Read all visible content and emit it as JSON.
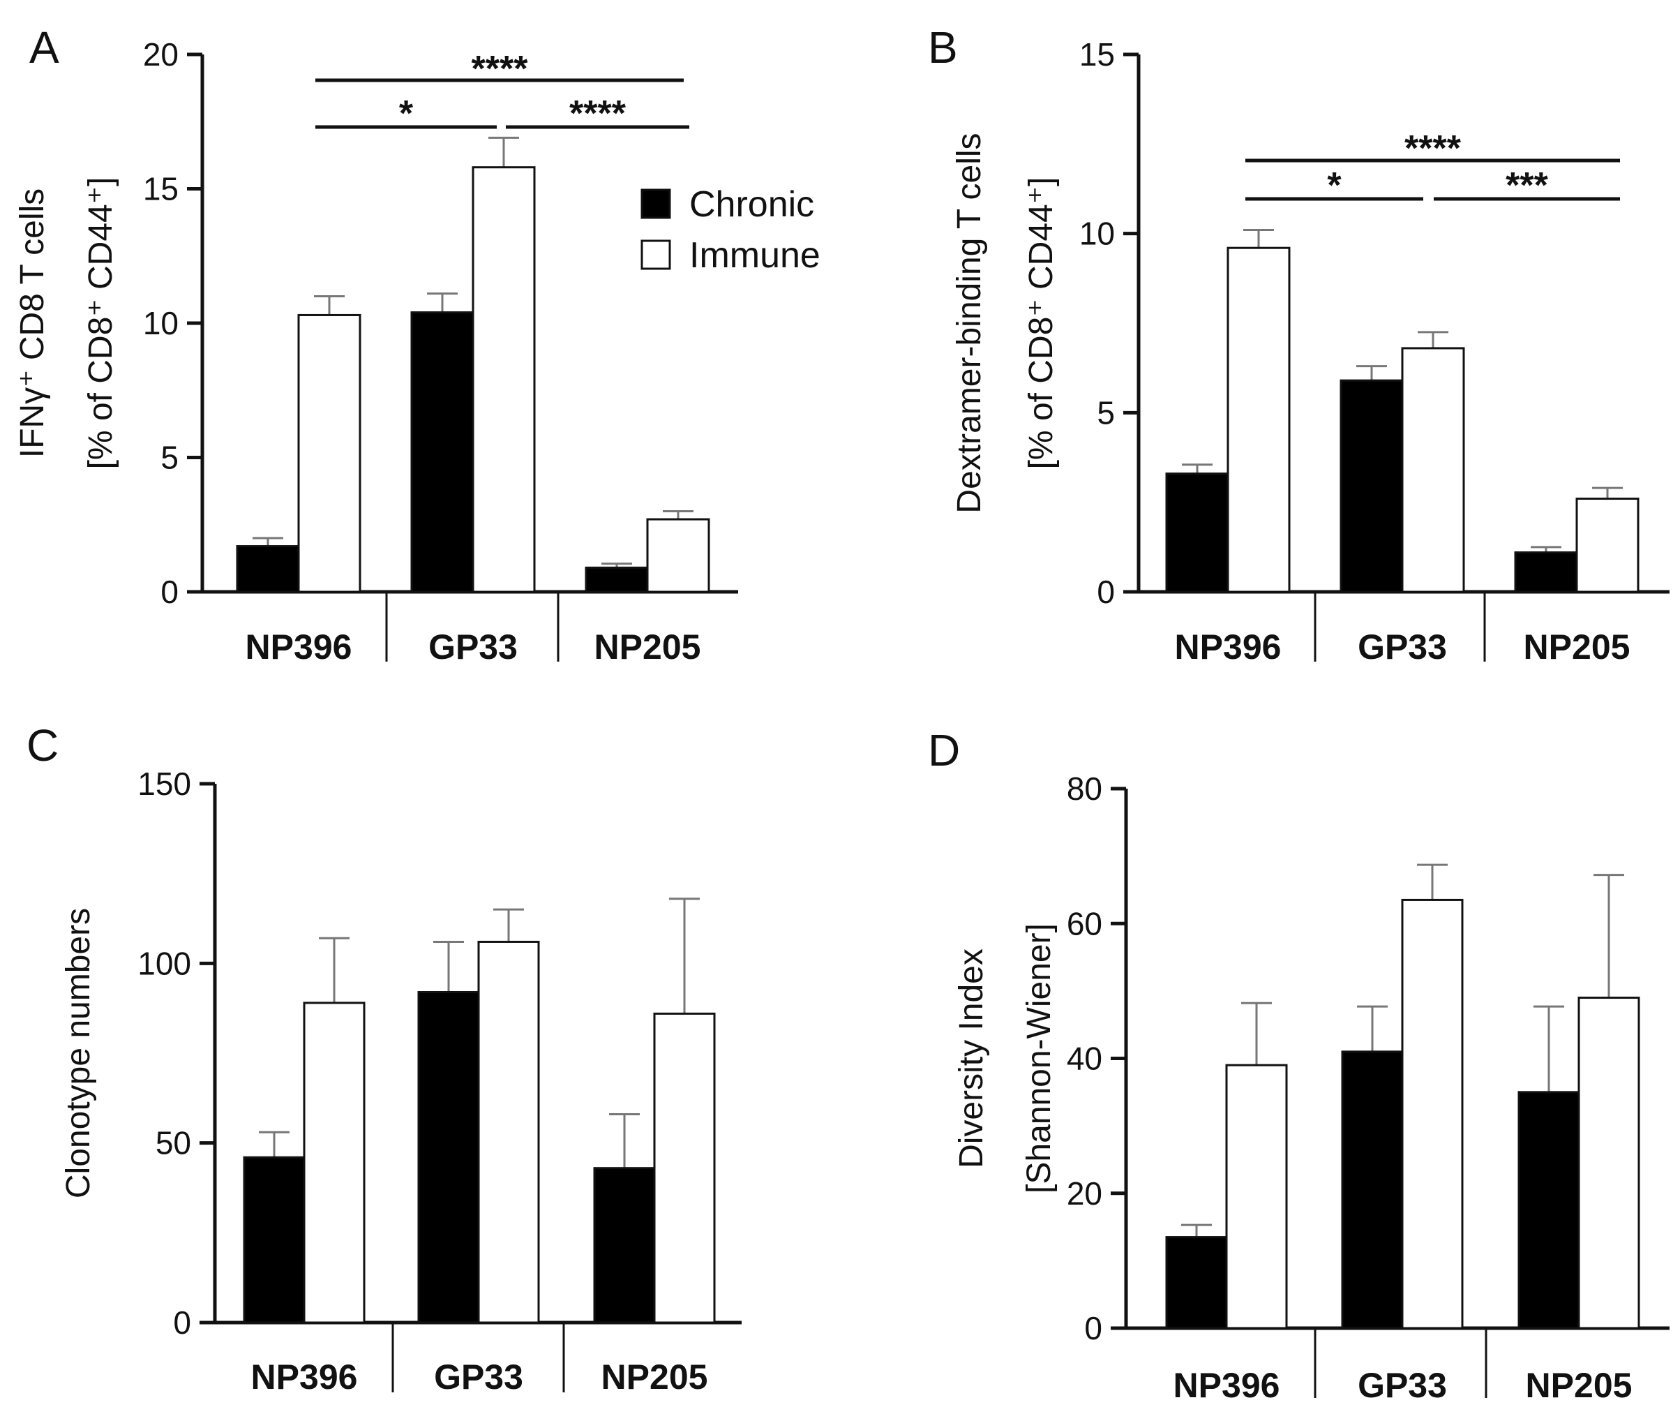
{
  "colors": {
    "chronic": "#000000",
    "immune": "#ffffff",
    "axis": "#111111",
    "error_bar": "#777777"
  },
  "legend": {
    "chronic": "Chronic",
    "immune": "Immune"
  },
  "chart_data": [
    {
      "panel": "A",
      "type": "bar",
      "categories": [
        "NP396",
        "GP33",
        "NP205"
      ],
      "series": [
        {
          "name": "Chronic",
          "values": [
            1.7,
            10.4,
            0.9
          ],
          "errors": [
            0.3,
            0.7,
            0.15
          ]
        },
        {
          "name": "Immune",
          "values": [
            10.3,
            15.8,
            2.7
          ],
          "errors": [
            0.7,
            1.1,
            0.3
          ]
        }
      ],
      "ylim": [
        0,
        20
      ],
      "yticks": [
        "0",
        "5",
        "10",
        "15",
        "20"
      ],
      "ylabel_line1": "IFNγ⁺ CD8 T cells",
      "ylabel_line2": "[% of CD8⁺ CD44⁺]",
      "significance": [
        {
          "from": "NP396",
          "to": "NP205",
          "label": "****"
        },
        {
          "from": "NP396",
          "to": "GP33",
          "label": "*"
        },
        {
          "from": "GP33",
          "to": "NP205",
          "label": "****"
        }
      ]
    },
    {
      "panel": "B",
      "type": "bar",
      "categories": [
        "NP396",
        "GP33",
        "NP205"
      ],
      "series": [
        {
          "name": "Chronic",
          "values": [
            3.3,
            5.9,
            1.1
          ],
          "errors": [
            0.25,
            0.4,
            0.15
          ]
        },
        {
          "name": "Immune",
          "values": [
            9.6,
            6.8,
            2.6
          ],
          "errors": [
            0.5,
            0.45,
            0.3
          ]
        }
      ],
      "ylim": [
        0,
        15
      ],
      "yticks": [
        "0",
        "5",
        "10",
        "15"
      ],
      "ylabel_line1": "Dextramer-binding T cells",
      "ylabel_line2": "[% of CD8⁺ CD44⁺]",
      "significance": [
        {
          "from": "NP396",
          "to": "NP205",
          "label": "****"
        },
        {
          "from": "NP396",
          "to": "GP33",
          "label": "*"
        },
        {
          "from": "GP33",
          "to": "NP205",
          "label": "***"
        }
      ]
    },
    {
      "panel": "C",
      "type": "bar",
      "categories": [
        "NP396",
        "GP33",
        "NP205"
      ],
      "series": [
        {
          "name": "Chronic",
          "values": [
            46,
            92,
            43
          ],
          "errors": [
            7,
            14,
            15
          ]
        },
        {
          "name": "Immune",
          "values": [
            89,
            106,
            86
          ],
          "errors": [
            18,
            9,
            32
          ]
        }
      ],
      "ylim": [
        0,
        150
      ],
      "yticks": [
        "0",
        "50",
        "100",
        "150"
      ],
      "ylabel_line1": "Clonotype numbers",
      "ylabel_line2": "",
      "significance": []
    },
    {
      "panel": "D",
      "type": "bar",
      "categories": [
        "NP396",
        "GP33",
        "NP205"
      ],
      "series": [
        {
          "name": "Chronic",
          "values": [
            13.5,
            41,
            35
          ],
          "errors": [
            1.8,
            6.7,
            12.7
          ]
        },
        {
          "name": "Immune",
          "values": [
            39,
            63.5,
            49
          ],
          "errors": [
            9.2,
            5.2,
            18.2
          ]
        }
      ],
      "ylim": [
        0,
        80
      ],
      "yticks": [
        "0",
        "20",
        "40",
        "60",
        "80"
      ],
      "ylabel_line1": "Diversity Index",
      "ylabel_line2": "[Shannon-Wiener]",
      "significance": []
    }
  ]
}
